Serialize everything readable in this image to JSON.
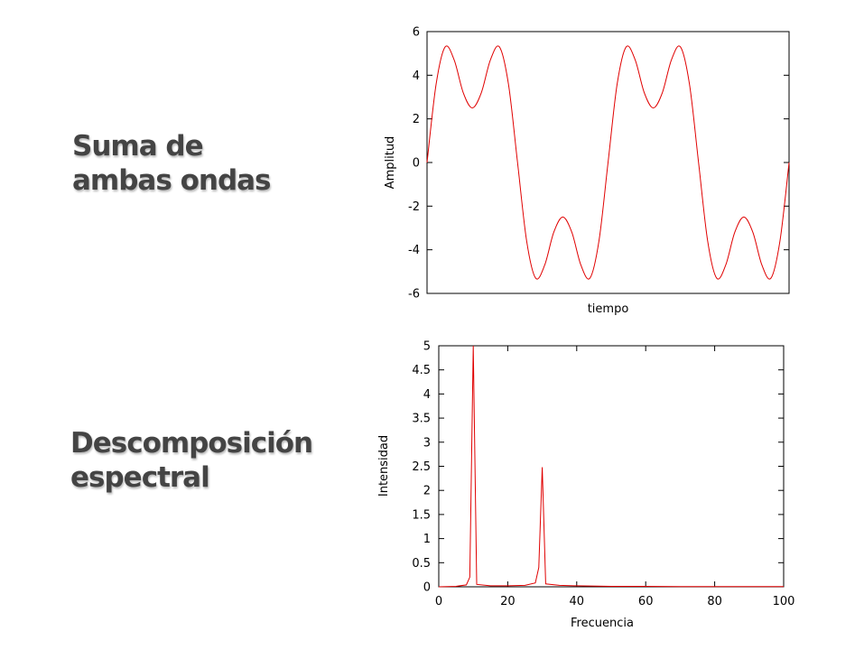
{
  "headings": {
    "top": {
      "line1": "Suma de",
      "line2": "ambas ondas"
    },
    "bottom": {
      "line1": "Descomposición",
      "line2": "espectral"
    }
  },
  "colors": {
    "series": "#e00000",
    "heading": "#444444",
    "axes": "#000000"
  },
  "chart_data": [
    {
      "type": "line",
      "title": "",
      "xlabel": "tiempo",
      "ylabel": "Amplitud",
      "ylim": [
        -6,
        6
      ],
      "yticks": [
        -6,
        -4,
        -2,
        0,
        2,
        4,
        6
      ],
      "ytick_labels": [
        "-6",
        "-4",
        "-2",
        "0",
        "2",
        "4",
        "6"
      ],
      "xticks": [],
      "grid": false,
      "legend": "none",
      "series": [
        {
          "x": [
            0,
            0.005,
            0.01,
            0.015,
            0.02,
            0.025,
            0.03,
            0.035,
            0.04,
            0.045,
            0.05,
            0.055,
            0.06,
            0.065,
            0.07,
            0.075,
            0.08,
            0.085,
            0.09,
            0.095,
            0.1,
            0.105,
            0.11,
            0.115,
            0.12,
            0.125,
            0.13,
            0.135,
            0.14,
            0.145,
            0.15,
            0.155,
            0.16,
            0.165,
            0.17,
            0.175,
            0.18,
            0.185,
            0.19,
            0.195,
            0.2
          ],
          "y": [
            0.0,
            3.58,
            5.3,
            4.7,
            3.2,
            2.5,
            3.2,
            4.7,
            5.3,
            3.58,
            0.0,
            -3.58,
            -5.3,
            -4.7,
            -3.2,
            -2.5,
            -3.2,
            -4.7,
            -5.3,
            -3.58,
            0.0,
            3.58,
            5.3,
            4.7,
            3.2,
            2.5,
            3.2,
            4.7,
            5.3,
            3.58,
            0.0,
            -3.58,
            -5.3,
            -4.7,
            -3.2,
            -2.5,
            -3.2,
            -4.7,
            -5.3,
            -3.58,
            0.0
          ]
        }
      ]
    },
    {
      "type": "line",
      "title": "",
      "xlabel": "Frecuencia",
      "ylabel": "Intensidad",
      "xlim": [
        0,
        100
      ],
      "ylim": [
        0,
        5
      ],
      "xticks": [
        0,
        20,
        40,
        60,
        80,
        100
      ],
      "xtick_labels": [
        "0",
        "20",
        "40",
        "60",
        "80",
        "100"
      ],
      "yticks": [
        0,
        0.5,
        1,
        1.5,
        2,
        2.5,
        3,
        3.5,
        4,
        4.5,
        5
      ],
      "ytick_labels": [
        "0",
        "0.5",
        "1",
        "1.5",
        "2",
        "2.5",
        "3",
        "3.5",
        "4",
        "4.5",
        "5"
      ],
      "grid": false,
      "legend": "none",
      "series": [
        {
          "x": [
            0,
            5,
            8,
            9,
            10,
            11,
            15,
            20,
            25,
            28,
            29,
            30,
            31,
            35,
            40,
            50,
            60,
            70,
            80,
            90,
            100
          ],
          "y": [
            0,
            0.01,
            0.04,
            0.2,
            5.0,
            0.05,
            0.02,
            0.02,
            0.03,
            0.08,
            0.4,
            2.48,
            0.06,
            0.03,
            0.02,
            0.01,
            0.01,
            0.005,
            0.005,
            0.005,
            0.005
          ]
        }
      ]
    }
  ]
}
